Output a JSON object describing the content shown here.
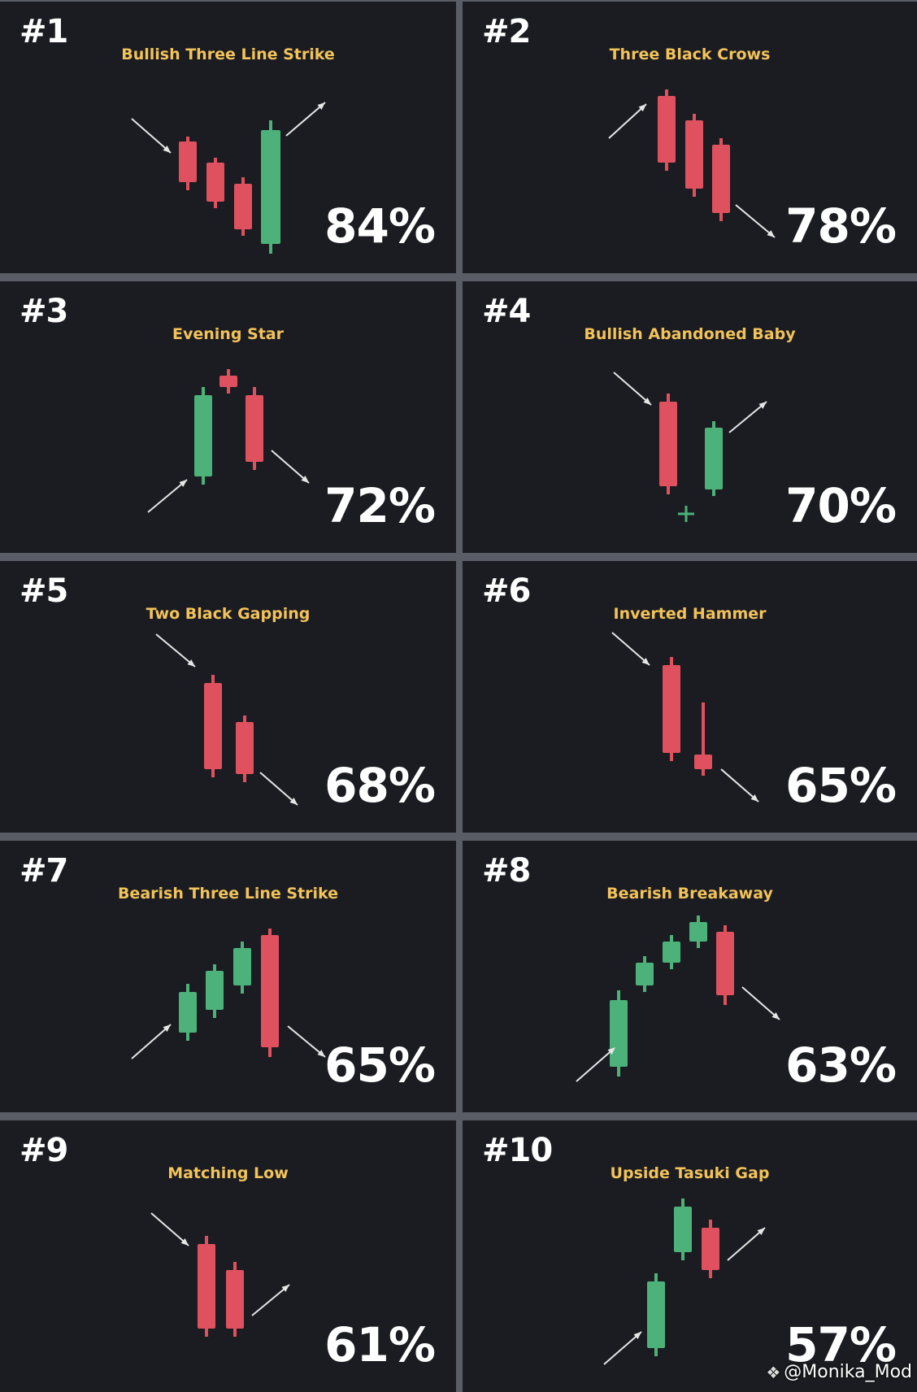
{
  "colors": {
    "bull": "#4cb27a",
    "bear": "#e0515f",
    "title": "#f2c35a",
    "arrow": "#e6e6e6"
  },
  "patterns": [
    {
      "rank": "#1",
      "title": "Bullish Three Line Strike",
      "percent": "84%"
    },
    {
      "rank": "#2",
      "title": "Three Black Crows",
      "percent": "78%"
    },
    {
      "rank": "#3",
      "title": "Evening Star",
      "percent": "72%"
    },
    {
      "rank": "#4",
      "title": "Bullish Abandoned Baby",
      "percent": "70%"
    },
    {
      "rank": "#5",
      "title": "Two Black Gapping",
      "percent": "68%"
    },
    {
      "rank": "#6",
      "title": "Inverted Hammer",
      "percent": "65%"
    },
    {
      "rank": "#7",
      "title": "Bearish Three Line Strike",
      "percent": "65%"
    },
    {
      "rank": "#8",
      "title": "Bearish Breakaway",
      "percent": "63%"
    },
    {
      "rank": "#9",
      "title": "Matching Low",
      "percent": "61%"
    },
    {
      "rank": "#10",
      "title": "Upside Tasuki Gap",
      "percent": "57%"
    }
  ],
  "watermark": {
    "icon": "binance-logo-icon",
    "text": "@Monika_Mod"
  }
}
